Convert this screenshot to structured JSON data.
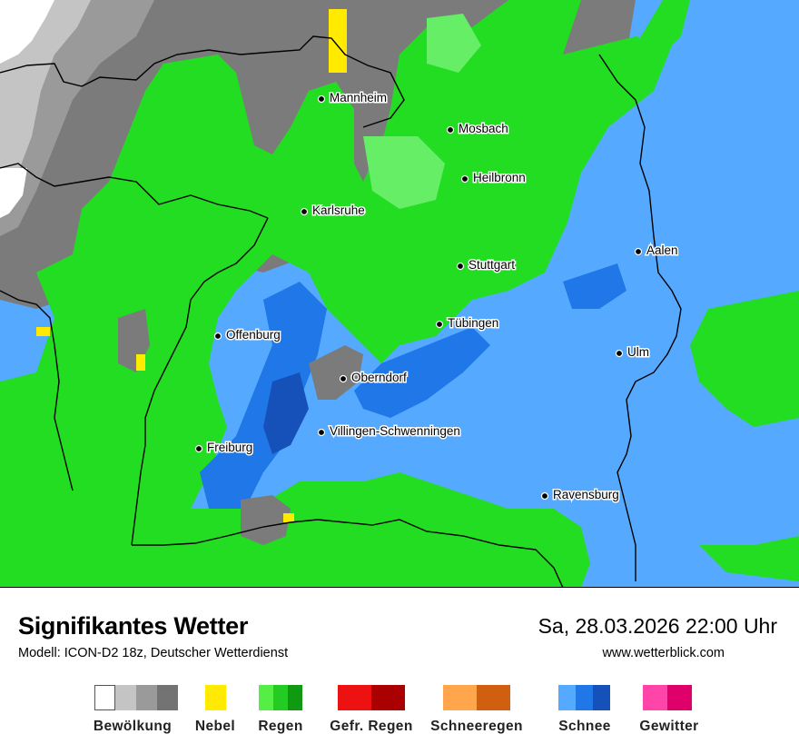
{
  "header": {
    "title": "Signifikantes Wetter",
    "model": "Modell: ICON-D2 18z, Deutscher Wetterdienst",
    "datetime": "Sa, 28.03.2026 22:00 Uhr",
    "website": "www.wetterblick.com"
  },
  "cities": [
    {
      "name": "Mannheim"
    },
    {
      "name": "Mosbach"
    },
    {
      "name": "Heilbronn"
    },
    {
      "name": "Karlsruhe"
    },
    {
      "name": "Stuttgart"
    },
    {
      "name": "Aalen"
    },
    {
      "name": "Tübingen"
    },
    {
      "name": "Offenburg"
    },
    {
      "name": "Ulm"
    },
    {
      "name": "Oberndorf"
    },
    {
      "name": "Villingen-Schwenningen"
    },
    {
      "name": "Freiburg"
    },
    {
      "name": "Ravensburg"
    }
  ],
  "legend": [
    {
      "label": "Bewölkung",
      "colors": [
        "#ffffff",
        "#c4c4c4",
        "#9a9a9a",
        "#737373"
      ]
    },
    {
      "label": "Nebel",
      "colors": [
        "#ffea00"
      ]
    },
    {
      "label": "Regen",
      "colors": [
        "#55ee44",
        "#22cc22",
        "#119911"
      ]
    },
    {
      "label": "Gefr. Regen",
      "colors": [
        "#ee1111",
        "#aa0000"
      ]
    },
    {
      "label": "Schneeregen",
      "colors": [
        "#ffa64d",
        "#d06010"
      ]
    },
    {
      "label": "Schnee",
      "colors": [
        "#55aaff",
        "#1f77e8",
        "#1551b8"
      ]
    },
    {
      "label": "Gewitter",
      "colors": [
        "#ff44aa",
        "#e0006a"
      ]
    }
  ],
  "colors": {
    "snow_light": "#55aaff",
    "snow_mid": "#1f77e8",
    "snow_dark": "#1551b8",
    "rain_bright": "#22dd22",
    "rain_light": "#66ee66",
    "cloud_dark": "#7b7b7b",
    "cloud_mid": "#9a9a9a",
    "cloud_light": "#c4c4c4",
    "fog": "#ffea00"
  }
}
